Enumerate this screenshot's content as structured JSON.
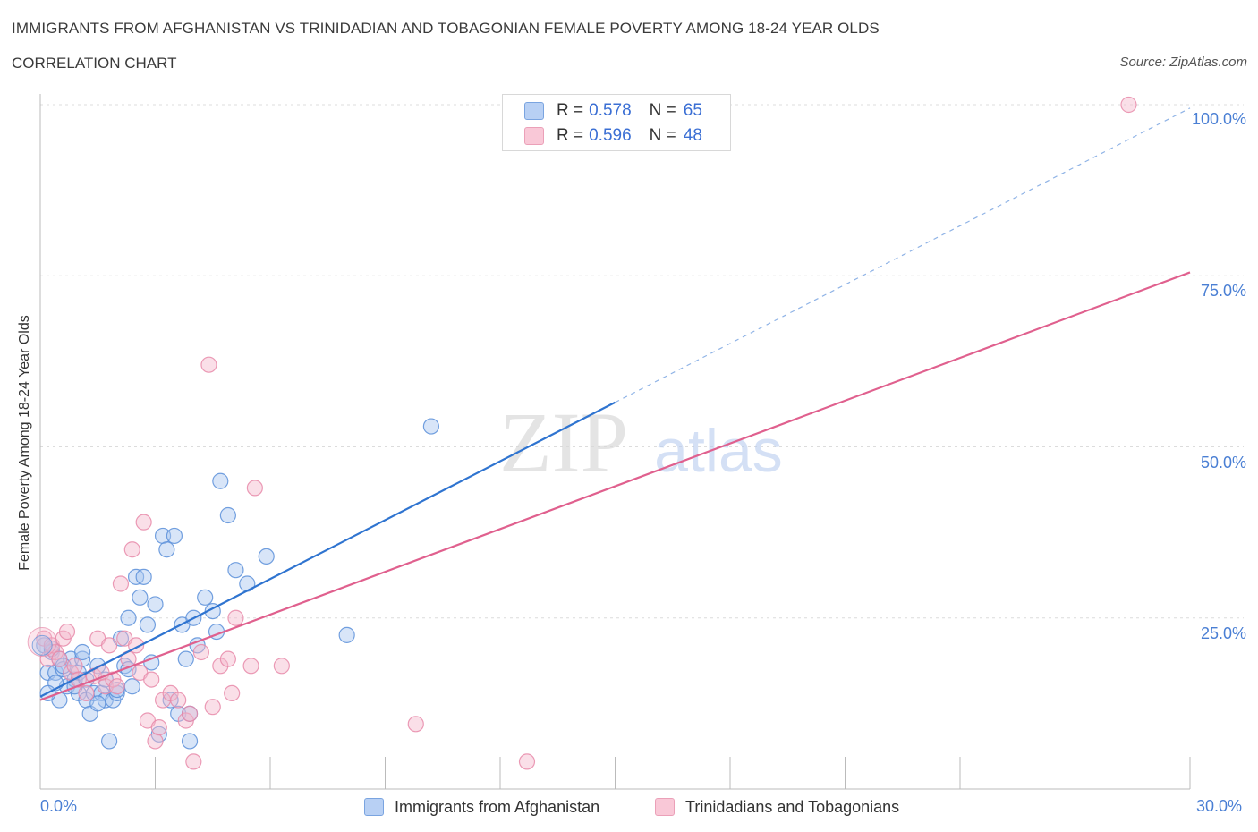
{
  "header": {
    "title": "IMMIGRANTS FROM AFGHANISTAN VS TRINIDADIAN AND TOBAGONIAN FEMALE POVERTY AMONG 18-24 YEAR OLDS",
    "subtitle": "CORRELATION CHART",
    "source": "Source: ZipAtlas.com"
  },
  "watermark": {
    "zip": "ZIP",
    "atlas": "atlas"
  },
  "legend": {
    "series1": {
      "r_label": "R = ",
      "r_value": "0.578",
      "n_label": "N = ",
      "n_value": "65"
    },
    "series2": {
      "r_label": "R = ",
      "r_value": "0.596",
      "n_label": "N = ",
      "n_value": "48"
    },
    "bottom1": "Immigrants from Afghanistan",
    "bottom2": "Trinidadians and Tobagonians"
  },
  "colors": {
    "blue_fill": "#a9c6f0",
    "blue_stroke": "#5b8fd9",
    "blue_line": "#2f74d0",
    "pink_fill": "#f5b8cc",
    "pink_stroke": "#e78aa9",
    "pink_line": "#e0608e",
    "tick_text": "#4a7fd4",
    "grid": "#dcdcdc"
  },
  "chart_data": {
    "type": "scatter",
    "title": "IMMIGRANTS FROM AFGHANISTAN VS TRINIDADIAN AND TOBAGONIAN FEMALE POVERTY AMONG 18-24 YEAR OLDS",
    "xlabel": "",
    "ylabel": "Female Poverty Among 18-24 Year Olds",
    "xlim": [
      0,
      30
    ],
    "ylim": [
      0,
      100
    ],
    "x_tick_labels": [
      "0.0%",
      "30.0%"
    ],
    "y_tick_labels": [
      "100.0%",
      "75.0%",
      "50.0%",
      "25.0%"
    ],
    "y_ticks": [
      100,
      75,
      50,
      25
    ],
    "grid": true,
    "legend_position": "top-center",
    "series": [
      {
        "name": "Immigrants from Afghanistan",
        "color": "#a9c6f0",
        "points": [
          [
            0.1,
            21
          ],
          [
            0.2,
            17
          ],
          [
            0.3,
            20
          ],
          [
            0.4,
            17
          ],
          [
            0.5,
            13
          ],
          [
            0.5,
            19
          ],
          [
            0.6,
            17.5
          ],
          [
            0.7,
            15
          ],
          [
            0.8,
            19
          ],
          [
            0.9,
            16
          ],
          [
            1.0,
            17
          ],
          [
            1.0,
            14
          ],
          [
            1.1,
            19
          ],
          [
            1.1,
            20
          ],
          [
            1.2,
            13
          ],
          [
            1.3,
            11
          ],
          [
            1.4,
            14
          ],
          [
            1.5,
            18
          ],
          [
            1.6,
            14
          ],
          [
            1.7,
            13
          ],
          [
            1.8,
            7
          ],
          [
            1.9,
            13
          ],
          [
            2.0,
            14
          ],
          [
            2.1,
            22
          ],
          [
            2.2,
            18
          ],
          [
            2.3,
            25
          ],
          [
            2.4,
            15
          ],
          [
            2.5,
            31
          ],
          [
            2.6,
            28
          ],
          [
            2.7,
            31
          ],
          [
            2.8,
            24
          ],
          [
            2.9,
            18.5
          ],
          [
            3.0,
            27
          ],
          [
            3.1,
            8
          ],
          [
            3.2,
            37
          ],
          [
            3.3,
            35
          ],
          [
            3.4,
            13
          ],
          [
            3.5,
            37
          ],
          [
            3.6,
            11
          ],
          [
            3.7,
            24
          ],
          [
            3.8,
            19
          ],
          [
            3.9,
            7
          ],
          [
            3.9,
            11
          ],
          [
            4.0,
            25
          ],
          [
            4.1,
            21
          ],
          [
            4.3,
            28
          ],
          [
            4.5,
            26
          ],
          [
            4.6,
            23
          ],
          [
            4.7,
            45
          ],
          [
            4.9,
            40
          ],
          [
            5.1,
            32
          ],
          [
            5.4,
            30
          ],
          [
            5.9,
            34
          ],
          [
            8.0,
            22.5
          ],
          [
            10.2,
            53
          ],
          [
            0.3,
            20.5
          ],
          [
            0.6,
            18
          ],
          [
            0.9,
            15
          ],
          [
            1.2,
            16
          ],
          [
            1.5,
            12.5
          ],
          [
            1.7,
            16
          ],
          [
            2.0,
            14.5
          ],
          [
            2.3,
            17.5
          ],
          [
            0.4,
            15.5
          ],
          [
            0.2,
            14
          ]
        ]
      },
      {
        "name": "Trinidadians and Tobagonians",
        "color": "#f5b8cc",
        "points": [
          [
            0.1,
            22
          ],
          [
            0.2,
            19
          ],
          [
            0.3,
            21
          ],
          [
            0.4,
            20
          ],
          [
            0.5,
            19
          ],
          [
            0.6,
            22
          ],
          [
            0.7,
            23
          ],
          [
            0.8,
            17
          ],
          [
            0.9,
            18
          ],
          [
            1.0,
            16
          ],
          [
            1.2,
            14
          ],
          [
            1.4,
            16.5
          ],
          [
            1.5,
            22
          ],
          [
            1.6,
            17
          ],
          [
            1.7,
            15
          ],
          [
            1.8,
            21
          ],
          [
            1.9,
            16
          ],
          [
            2.0,
            15
          ],
          [
            2.1,
            30
          ],
          [
            2.2,
            22
          ],
          [
            2.3,
            19
          ],
          [
            2.4,
            35
          ],
          [
            2.5,
            21
          ],
          [
            2.6,
            17
          ],
          [
            2.7,
            39
          ],
          [
            2.8,
            10
          ],
          [
            2.9,
            16
          ],
          [
            3.0,
            7
          ],
          [
            3.1,
            9
          ],
          [
            3.2,
            13
          ],
          [
            3.4,
            14
          ],
          [
            3.6,
            13
          ],
          [
            3.8,
            10
          ],
          [
            3.9,
            11
          ],
          [
            4.0,
            4
          ],
          [
            4.2,
            20
          ],
          [
            4.4,
            62
          ],
          [
            4.5,
            12
          ],
          [
            4.7,
            18
          ],
          [
            4.9,
            19
          ],
          [
            5.0,
            14
          ],
          [
            5.1,
            25
          ],
          [
            5.5,
            18
          ],
          [
            5.6,
            44
          ],
          [
            6.3,
            18
          ],
          [
            9.8,
            9.5
          ],
          [
            12.7,
            4
          ],
          [
            28.4,
            100
          ]
        ]
      }
    ],
    "trend_lines": [
      {
        "series": "Immigrants from Afghanistan",
        "x": [
          0,
          15
        ],
        "y": [
          13.5,
          56.5
        ],
        "dashed_extension_to_x": 30
      },
      {
        "series": "Trinidadians and Tobagonians",
        "x": [
          0,
          30
        ],
        "y": [
          13,
          75.5
        ]
      }
    ]
  }
}
